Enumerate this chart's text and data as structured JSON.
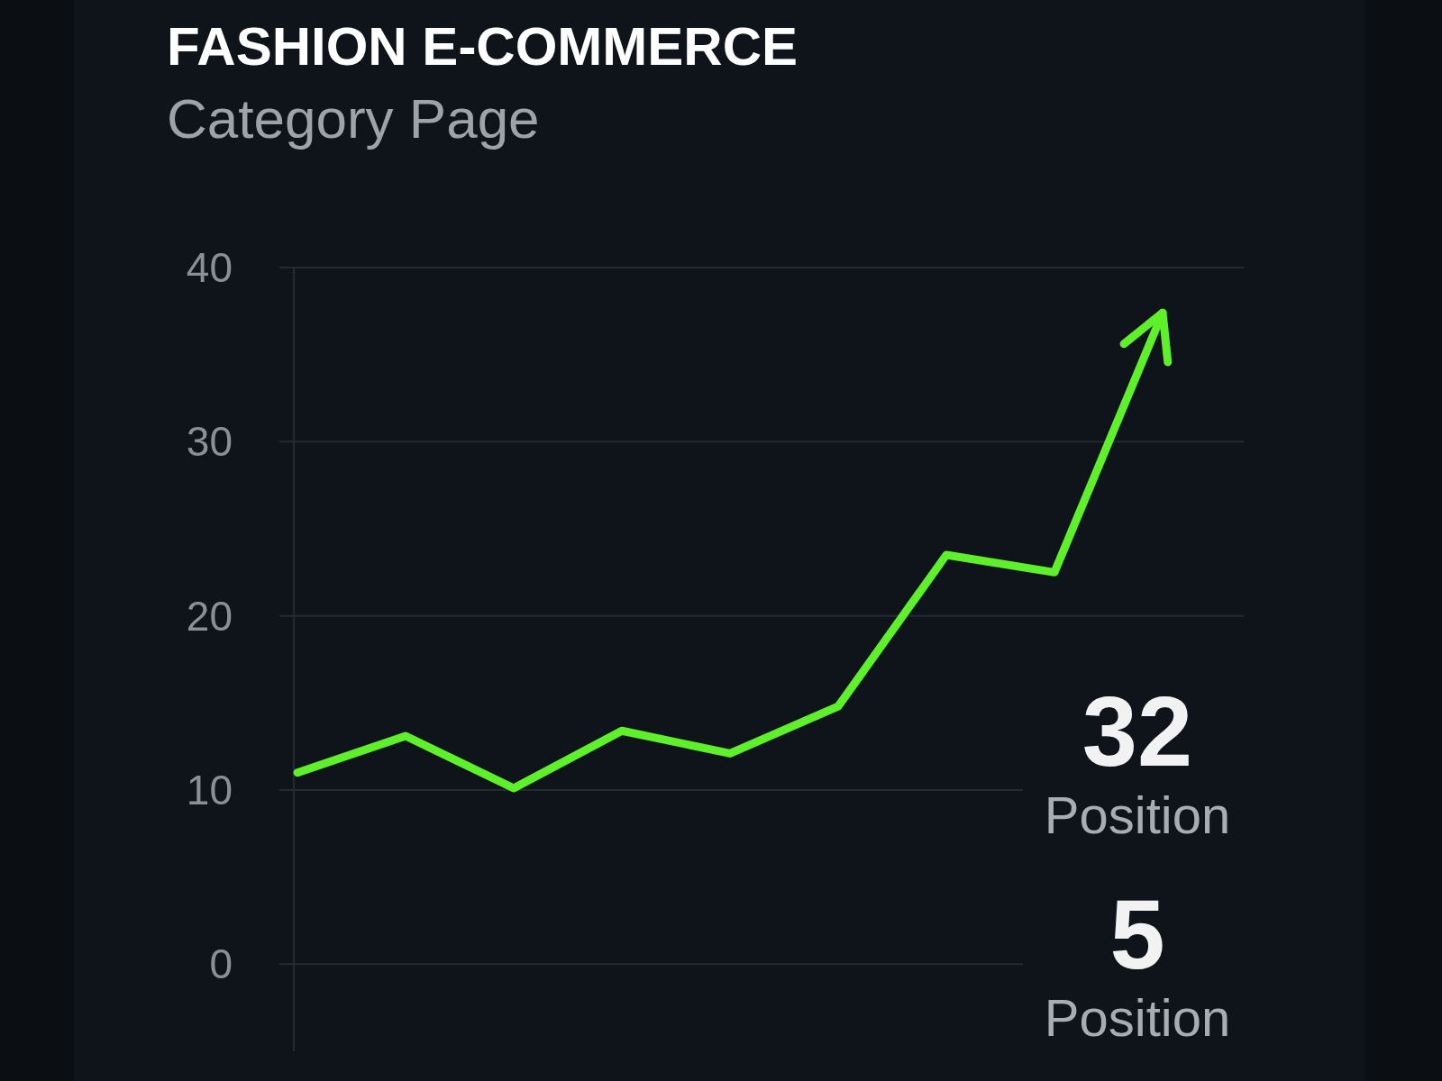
{
  "chart_data": {
    "type": "line",
    "title": "FASHION E-COMMERCE",
    "subtitle": "Category Page",
    "categories": [
      null,
      null,
      null,
      null,
      null,
      null,
      null,
      null,
      null
    ],
    "series": [
      {
        "color": "#5ef02a",
        "values": [
          11.0,
          13.1,
          10.1,
          13.4,
          12.1,
          14.8,
          23.5,
          22.5,
          37.4
        ]
      }
    ],
    "ylim": [
      -5,
      40
    ],
    "yticks": [
      0,
      10,
      20,
      30,
      40
    ],
    "grid": "y",
    "marker": "none",
    "line_style": "solid",
    "tick_labels": "y",
    "annotations": [
      "32",
      "Position",
      "5",
      "Position"
    ]
  }
}
